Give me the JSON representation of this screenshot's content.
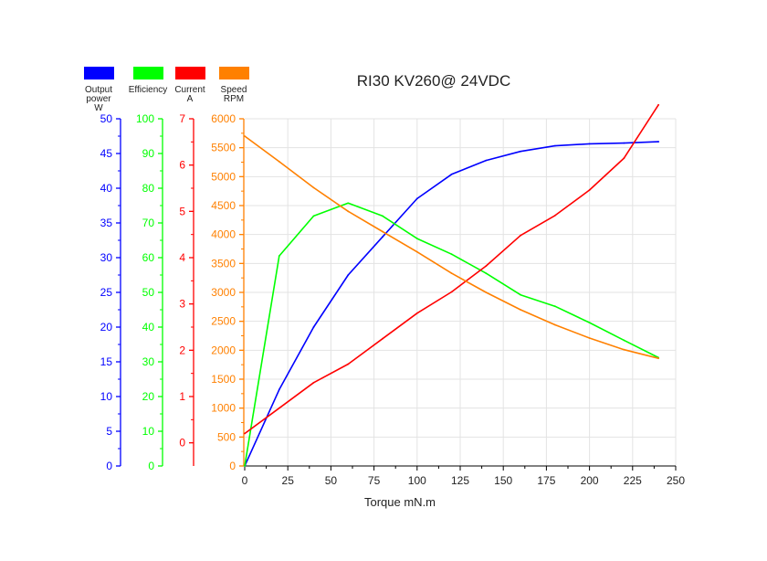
{
  "chart_data": {
    "type": "line",
    "title": "RI30 KV260@ 24VDC",
    "xlabel": "Torque mN.m",
    "x_ticks": [
      0,
      25,
      50,
      75,
      100,
      125,
      150,
      175,
      200,
      225,
      250
    ],
    "xlim": [
      0,
      250
    ],
    "grid": true,
    "legend": "top-left",
    "series": [
      {
        "key": "power",
        "legend_lines": [
          "Output",
          "power",
          "W"
        ],
        "color": "#0000ff",
        "ylim": [
          0,
          50
        ],
        "ticks": [
          0,
          5,
          10,
          15,
          20,
          25,
          30,
          35,
          40,
          45,
          50
        ],
        "x": [
          0,
          20,
          40,
          60,
          80,
          100,
          120,
          140,
          160,
          180,
          200,
          220,
          240
        ],
        "values": [
          0,
          11,
          20,
          27.5,
          33,
          38.5,
          42,
          44,
          45.3,
          46.1,
          46.4,
          46.5,
          46.7
        ]
      },
      {
        "key": "efficiency",
        "legend_lines": [
          "Efficiency"
        ],
        "color": "#00ff00",
        "ylim": [
          0,
          100
        ],
        "ticks": [
          0,
          10,
          20,
          30,
          40,
          50,
          60,
          70,
          80,
          90,
          100
        ],
        "x": [
          0,
          20,
          40,
          60,
          80,
          100,
          120,
          140,
          160,
          180,
          200,
          220,
          240
        ],
        "values": [
          0,
          60.5,
          72,
          75.7,
          72,
          65.5,
          61,
          55.5,
          49.3,
          46,
          41.3,
          36.2,
          31.2
        ]
      },
      {
        "key": "current",
        "legend_lines": [
          "Current",
          "A"
        ],
        "color": "#ff0000",
        "ylim": [
          -0.5,
          7
        ],
        "ticks": [
          0,
          1,
          2,
          3,
          4,
          5,
          6,
          7
        ],
        "x": [
          0,
          20,
          40,
          60,
          80,
          100,
          120,
          140,
          160,
          180,
          200,
          220,
          240
        ],
        "values": [
          0.2,
          0.75,
          1.3,
          1.7,
          2.25,
          2.8,
          3.26,
          3.82,
          4.48,
          4.91,
          5.46,
          6.15,
          7.3
        ]
      },
      {
        "key": "speed",
        "legend_lines": [
          "Speed",
          "RPM"
        ],
        "color": "#ff8000",
        "ylim": [
          0,
          6000
        ],
        "ticks": [
          0,
          500,
          1000,
          1500,
          2000,
          2500,
          3000,
          3500,
          4000,
          4500,
          5000,
          5500,
          6000
        ],
        "x": [
          0,
          20,
          40,
          60,
          80,
          100,
          120,
          140,
          160,
          180,
          200,
          220,
          240
        ],
        "values": [
          5700,
          5260,
          4810,
          4400,
          4050,
          3700,
          3330,
          3000,
          2700,
          2440,
          2210,
          2010,
          1860
        ]
      }
    ]
  }
}
